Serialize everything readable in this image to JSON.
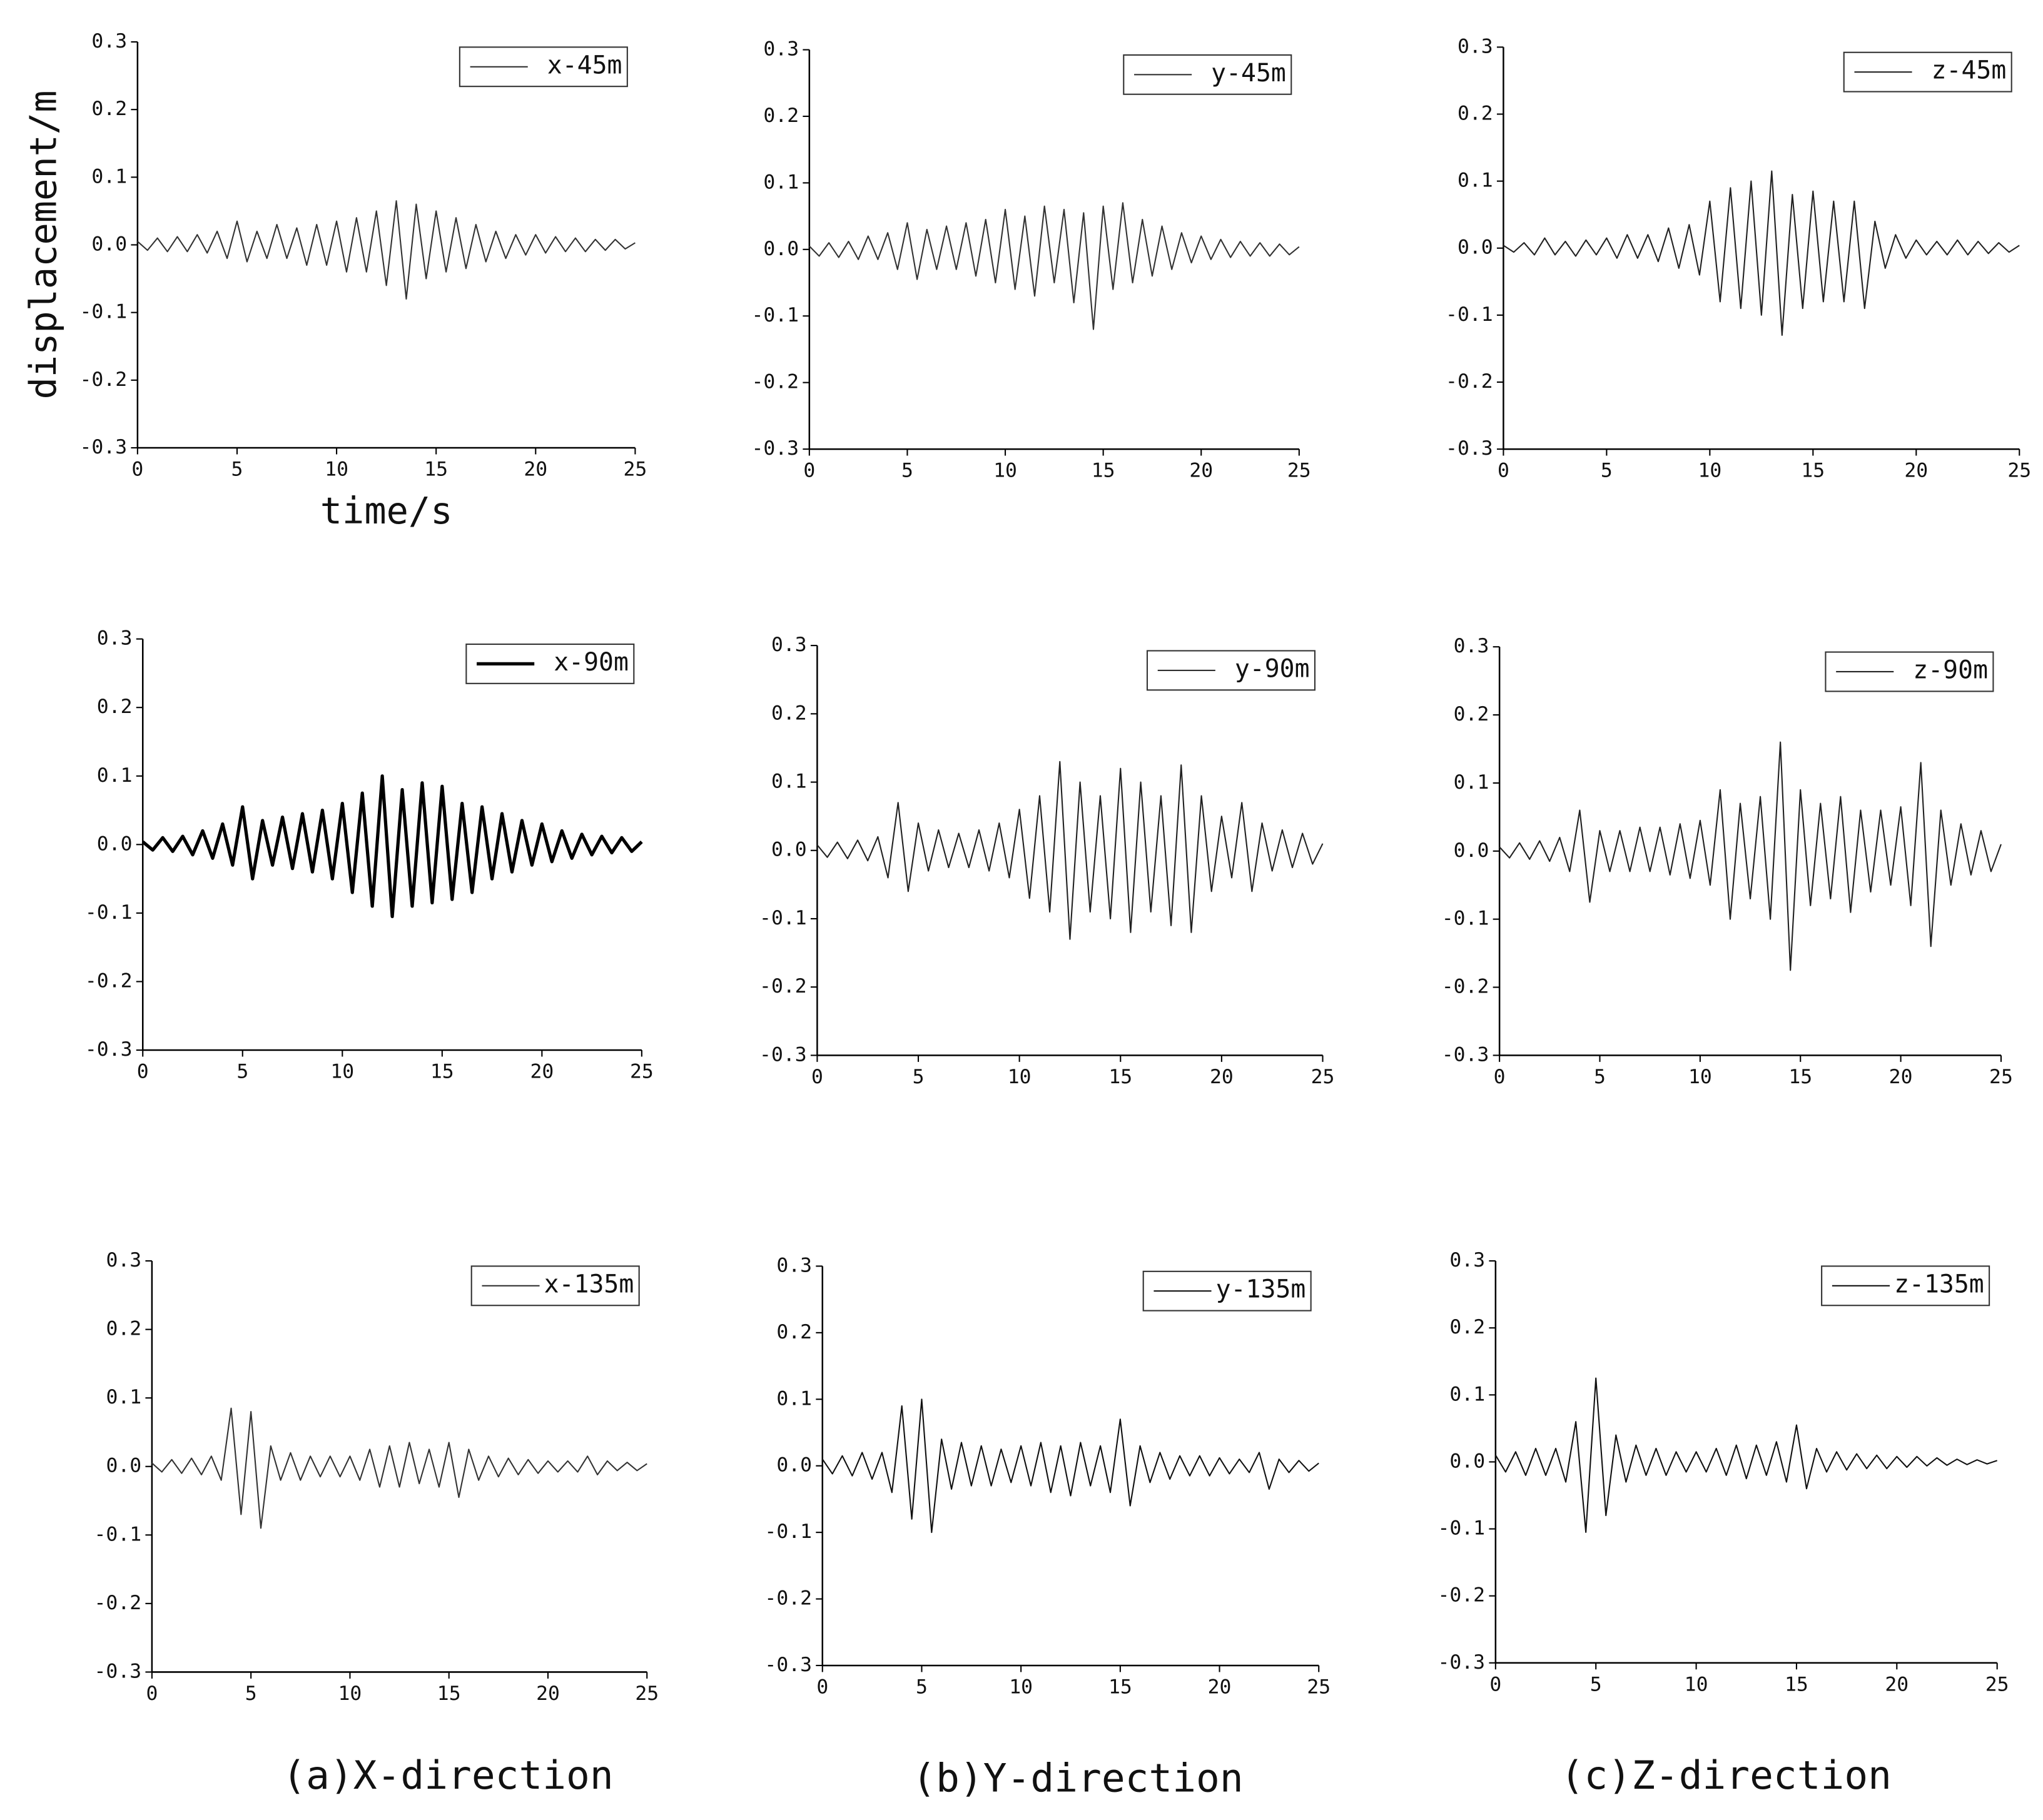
{
  "chart_data": [
    {
      "type": "line",
      "y_label": "displacement/m",
      "x_label": "time/s",
      "x": [
        0,
        0.5,
        1,
        1.5,
        2,
        2.5,
        3,
        3.5,
        4,
        4.5,
        5,
        5.5,
        6,
        6.5,
        7,
        7.5,
        8,
        8.5,
        9,
        9.5,
        10,
        10.5,
        11,
        11.5,
        12,
        12.5,
        13,
        13.5,
        14,
        14.5,
        15,
        15.5,
        16,
        16.5,
        17,
        17.5,
        18,
        18.5,
        19,
        19.5,
        20,
        20.5,
        21,
        21.5,
        22,
        22.5,
        23,
        23.5,
        24,
        24.5,
        25
      ],
      "series": [
        {
          "name": "x-45m",
          "color": "#333333",
          "linewidth": 1,
          "values": [
            0.005,
            -0.008,
            0.01,
            -0.01,
            0.012,
            -0.01,
            0.015,
            -0.012,
            0.02,
            -0.02,
            0.035,
            -0.025,
            0.02,
            -0.02,
            0.03,
            -0.02,
            0.025,
            -0.03,
            0.03,
            -0.03,
            0.035,
            -0.04,
            0.04,
            -0.04,
            0.05,
            -0.06,
            0.065,
            -0.08,
            0.06,
            -0.05,
            0.05,
            -0.04,
            0.04,
            -0.035,
            0.03,
            -0.025,
            0.02,
            -0.02,
            0.015,
            -0.015,
            0.015,
            -0.012,
            0.012,
            -0.01,
            0.01,
            -0.01,
            0.008,
            -0.008,
            0.008,
            -0.006,
            0.003
          ]
        }
      ],
      "xlim": [
        0,
        25
      ],
      "xticks": [
        0,
        5,
        10,
        15,
        20,
        25
      ],
      "ylim": [
        -0.3,
        0.3
      ],
      "yticks": [
        -0.3,
        -0.2,
        -0.1,
        {
          "value": 0,
          "label": "0.0"
        },
        0.1,
        0.2,
        0.3
      ]
    },
    {
      "type": "line",
      "x": [
        0,
        0.5,
        1,
        1.5,
        2,
        2.5,
        3,
        3.5,
        4,
        4.5,
        5,
        5.5,
        6,
        6.5,
        7,
        7.5,
        8,
        8.5,
        9,
        9.5,
        10,
        10.5,
        11,
        11.5,
        12,
        12.5,
        13,
        13.5,
        14,
        14.5,
        15,
        15.5,
        16,
        16.5,
        17,
        17.5,
        18,
        18.5,
        19,
        19.5,
        20,
        20.5,
        21,
        21.5,
        22,
        22.5,
        23,
        23.5,
        24,
        24.5,
        25
      ],
      "series": [
        {
          "name": "y-45m",
          "color": "#333333",
          "linewidth": 1,
          "values": [
            0.005,
            -0.01,
            0.01,
            -0.012,
            0.012,
            -0.015,
            0.02,
            -0.015,
            0.025,
            -0.03,
            0.04,
            -0.045,
            0.03,
            -0.03,
            0.035,
            -0.03,
            0.04,
            -0.04,
            0.045,
            -0.05,
            0.06,
            -0.06,
            0.05,
            -0.07,
            0.065,
            -0.05,
            0.06,
            -0.08,
            0.055,
            -0.12,
            0.065,
            -0.06,
            0.07,
            -0.05,
            0.045,
            -0.04,
            0.035,
            -0.03,
            0.025,
            -0.02,
            0.02,
            -0.015,
            0.015,
            -0.012,
            0.012,
            -0.01,
            0.01,
            -0.01,
            0.008,
            -0.008,
            0.004
          ]
        }
      ],
      "xlim": [
        0,
        25
      ],
      "xticks": [
        0,
        5,
        10,
        15,
        20,
        25
      ],
      "ylim": [
        -0.3,
        0.3
      ],
      "yticks": [
        -0.3,
        -0.2,
        -0.1,
        {
          "value": 0,
          "label": "0.0"
        },
        0.1,
        0.2,
        0.3
      ]
    },
    {
      "type": "line",
      "x": [
        0,
        0.5,
        1,
        1.5,
        2,
        2.5,
        3,
        3.5,
        4,
        4.5,
        5,
        5.5,
        6,
        6.5,
        7,
        7.5,
        8,
        8.5,
        9,
        9.5,
        10,
        10.5,
        11,
        11.5,
        12,
        12.5,
        13,
        13.5,
        14,
        14.5,
        15,
        15.5,
        16,
        16.5,
        17,
        17.5,
        18,
        18.5,
        19,
        19.5,
        20,
        20.5,
        21,
        21.5,
        22,
        22.5,
        23,
        23.5,
        24,
        24.5,
        25
      ],
      "series": [
        {
          "name": "z-45m",
          "color": "#222222",
          "linewidth": 1,
          "values": [
            0.004,
            -0.006,
            0.008,
            -0.01,
            0.015,
            -0.01,
            0.01,
            -0.012,
            0.012,
            -0.01,
            0.015,
            -0.015,
            0.02,
            -0.015,
            0.02,
            -0.02,
            0.03,
            -0.03,
            0.035,
            -0.04,
            0.07,
            -0.08,
            0.09,
            -0.09,
            0.1,
            -0.1,
            0.115,
            -0.13,
            0.08,
            -0.09,
            0.085,
            -0.08,
            0.07,
            -0.08,
            0.07,
            -0.09,
            0.04,
            -0.03,
            0.02,
            -0.015,
            0.012,
            -0.01,
            0.01,
            -0.01,
            0.012,
            -0.01,
            0.01,
            -0.008,
            0.008,
            -0.006,
            0.004
          ]
        }
      ],
      "xlim": [
        0,
        25
      ],
      "xticks": [
        0,
        5,
        10,
        15,
        20,
        25
      ],
      "ylim": [
        -0.3,
        0.3
      ],
      "yticks": [
        -0.3,
        -0.2,
        -0.1,
        {
          "value": 0,
          "label": "0.0"
        },
        0.1,
        0.2,
        0.3
      ]
    },
    {
      "type": "line",
      "x": [
        0,
        0.5,
        1,
        1.5,
        2,
        2.5,
        3,
        3.5,
        4,
        4.5,
        5,
        5.5,
        6,
        6.5,
        7,
        7.5,
        8,
        8.5,
        9,
        9.5,
        10,
        10.5,
        11,
        11.5,
        12,
        12.5,
        13,
        13.5,
        14,
        14.5,
        15,
        15.5,
        16,
        16.5,
        17,
        17.5,
        18,
        18.5,
        19,
        19.5,
        20,
        20.5,
        21,
        21.5,
        22,
        22.5,
        23,
        23.5,
        24,
        24.5,
        25
      ],
      "series": [
        {
          "name": "x-90m",
          "color": "#000000",
          "linewidth": 2.5,
          "values": [
            0.004,
            -0.008,
            0.01,
            -0.01,
            0.012,
            -0.015,
            0.02,
            -0.02,
            0.03,
            -0.03,
            0.055,
            -0.05,
            0.035,
            -0.03,
            0.04,
            -0.035,
            0.045,
            -0.04,
            0.05,
            -0.05,
            0.06,
            -0.07,
            0.075,
            -0.09,
            0.1,
            -0.105,
            0.08,
            -0.09,
            0.09,
            -0.085,
            0.085,
            -0.08,
            0.06,
            -0.07,
            0.055,
            -0.05,
            0.045,
            -0.04,
            0.035,
            -0.03,
            0.03,
            -0.025,
            0.02,
            -0.02,
            0.015,
            -0.015,
            0.012,
            -0.012,
            0.01,
            -0.01,
            0.004
          ]
        }
      ],
      "xlim": [
        0,
        25
      ],
      "xticks": [
        0,
        5,
        10,
        15,
        20,
        25
      ],
      "ylim": [
        -0.3,
        0.3
      ],
      "yticks": [
        -0.3,
        -0.2,
        -0.1,
        {
          "value": 0,
          "label": "0.0"
        },
        0.1,
        0.2,
        0.3
      ]
    },
    {
      "type": "line",
      "x": [
        0,
        0.5,
        1,
        1.5,
        2,
        2.5,
        3,
        3.5,
        4,
        4.5,
        5,
        5.5,
        6,
        6.5,
        7,
        7.5,
        8,
        8.5,
        9,
        9.5,
        10,
        10.5,
        11,
        11.5,
        12,
        12.5,
        13,
        13.5,
        14,
        14.5,
        15,
        15.5,
        16,
        16.5,
        17,
        17.5,
        18,
        18.5,
        19,
        19.5,
        20,
        20.5,
        21,
        21.5,
        22,
        22.5,
        23,
        23.5,
        24,
        24.5,
        25
      ],
      "series": [
        {
          "name": "y-90m",
          "color": "#222222",
          "linewidth": 1,
          "values": [
            0.008,
            -0.01,
            0.012,
            -0.012,
            0.015,
            -0.015,
            0.02,
            -0.04,
            0.07,
            -0.06,
            0.04,
            -0.03,
            0.03,
            -0.025,
            0.025,
            -0.025,
            0.03,
            -0.03,
            0.04,
            -0.04,
            0.06,
            -0.07,
            0.08,
            -0.09,
            0.13,
            -0.13,
            0.1,
            -0.09,
            0.08,
            -0.1,
            0.12,
            -0.12,
            0.1,
            -0.09,
            0.08,
            -0.11,
            0.125,
            -0.12,
            0.08,
            -0.06,
            0.05,
            -0.04,
            0.07,
            -0.06,
            0.04,
            -0.03,
            0.03,
            -0.025,
            0.025,
            -0.02,
            0.01
          ]
        }
      ],
      "xlim": [
        0,
        25
      ],
      "xticks": [
        0,
        5,
        10,
        15,
        20,
        25
      ],
      "ylim": [
        -0.3,
        0.3
      ],
      "yticks": [
        -0.3,
        -0.2,
        -0.1,
        {
          "value": 0,
          "label": "0.0"
        },
        0.1,
        0.2,
        0.3
      ]
    },
    {
      "type": "line",
      "x": [
        0,
        0.5,
        1,
        1.5,
        2,
        2.5,
        3,
        3.5,
        4,
        4.5,
        5,
        5.5,
        6,
        6.5,
        7,
        7.5,
        8,
        8.5,
        9,
        9.5,
        10,
        10.5,
        11,
        11.5,
        12,
        12.5,
        13,
        13.5,
        14,
        14.5,
        15,
        15.5,
        16,
        16.5,
        17,
        17.5,
        18,
        18.5,
        19,
        19.5,
        20,
        20.5,
        21,
        21.5,
        22,
        22.5,
        23,
        23.5,
        24,
        24.5,
        25
      ],
      "series": [
        {
          "name": "z-90m",
          "color": "#222222",
          "linewidth": 1,
          "values": [
            0.006,
            -0.01,
            0.012,
            -0.012,
            0.015,
            -0.015,
            0.02,
            -0.03,
            0.06,
            -0.075,
            0.03,
            -0.03,
            0.03,
            -0.03,
            0.035,
            -0.03,
            0.035,
            -0.035,
            0.04,
            -0.04,
            0.045,
            -0.05,
            0.09,
            -0.1,
            0.07,
            -0.07,
            0.08,
            -0.1,
            0.16,
            -0.175,
            0.09,
            -0.08,
            0.07,
            -0.07,
            0.08,
            -0.09,
            0.06,
            -0.06,
            0.06,
            -0.05,
            0.065,
            -0.08,
            0.13,
            -0.14,
            0.06,
            -0.05,
            0.04,
            -0.035,
            0.03,
            -0.03,
            0.01
          ]
        }
      ],
      "xlim": [
        0,
        25
      ],
      "xticks": [
        0,
        5,
        10,
        15,
        20,
        25
      ],
      "ylim": [
        -0.3,
        0.3
      ],
      "yticks": [
        -0.3,
        -0.2,
        -0.1,
        {
          "value": 0,
          "label": "0.0"
        },
        0.1,
        0.2,
        0.3
      ]
    },
    {
      "type": "line",
      "x": [
        0,
        0.5,
        1,
        1.5,
        2,
        2.5,
        3,
        3.5,
        4,
        4.5,
        5,
        5.5,
        6,
        6.5,
        7,
        7.5,
        8,
        8.5,
        9,
        9.5,
        10,
        10.5,
        11,
        11.5,
        12,
        12.5,
        13,
        13.5,
        14,
        14.5,
        15,
        15.5,
        16,
        16.5,
        17,
        17.5,
        18,
        18.5,
        19,
        19.5,
        20,
        20.5,
        21,
        21.5,
        22,
        22.5,
        23,
        23.5,
        24,
        24.5,
        25
      ],
      "series": [
        {
          "name": "x-135m",
          "color": "#333333",
          "linewidth": 1,
          "values": [
            0.005,
            -0.008,
            0.01,
            -0.01,
            0.012,
            -0.012,
            0.015,
            -0.02,
            0.085,
            -0.07,
            0.08,
            -0.09,
            0.03,
            -0.02,
            0.02,
            -0.02,
            0.015,
            -0.015,
            0.015,
            -0.015,
            0.015,
            -0.02,
            0.025,
            -0.03,
            0.03,
            -0.03,
            0.035,
            -0.025,
            0.025,
            -0.03,
            0.035,
            -0.045,
            0.025,
            -0.02,
            0.015,
            -0.015,
            0.012,
            -0.012,
            0.01,
            -0.01,
            0.008,
            -0.008,
            0.008,
            -0.008,
            0.015,
            -0.012,
            0.008,
            -0.006,
            0.006,
            -0.006,
            0.004
          ]
        }
      ],
      "xlim": [
        0,
        25
      ],
      "xticks": [
        0,
        5,
        10,
        15,
        20,
        25
      ],
      "ylim": [
        -0.3,
        0.3
      ],
      "yticks": [
        -0.3,
        -0.2,
        -0.1,
        {
          "value": 0,
          "label": "0.0"
        },
        0.1,
        0.2,
        0.3
      ]
    },
    {
      "type": "line",
      "x": [
        0,
        0.5,
        1,
        1.5,
        2,
        2.5,
        3,
        3.5,
        4,
        4.5,
        5,
        5.5,
        6,
        6.5,
        7,
        7.5,
        8,
        8.5,
        9,
        9.5,
        10,
        10.5,
        11,
        11.5,
        12,
        12.5,
        13,
        13.5,
        14,
        14.5,
        15,
        15.5,
        16,
        16.5,
        17,
        17.5,
        18,
        18.5,
        19,
        19.5,
        20,
        20.5,
        21,
        21.5,
        22,
        22.5,
        23,
        23.5,
        24,
        24.5,
        25
      ],
      "series": [
        {
          "name": "y-135m",
          "color": "#111111",
          "linewidth": 1,
          "values": [
            0.01,
            -0.012,
            0.015,
            -0.015,
            0.02,
            -0.02,
            0.02,
            -0.04,
            0.09,
            -0.08,
            0.1,
            -0.1,
            0.04,
            -0.035,
            0.035,
            -0.03,
            0.03,
            -0.03,
            0.025,
            -0.025,
            0.03,
            -0.03,
            0.035,
            -0.04,
            0.03,
            -0.045,
            0.035,
            -0.03,
            0.03,
            -0.04,
            0.07,
            -0.06,
            0.03,
            -0.025,
            0.02,
            -0.02,
            0.015,
            -0.015,
            0.015,
            -0.015,
            0.012,
            -0.012,
            0.01,
            -0.01,
            0.02,
            -0.035,
            0.01,
            -0.01,
            0.008,
            -0.008,
            0.004
          ]
        }
      ],
      "xlim": [
        0,
        25
      ],
      "xticks": [
        0,
        5,
        10,
        15,
        20,
        25
      ],
      "ylim": [
        -0.3,
        0.3
      ],
      "yticks": [
        -0.3,
        -0.2,
        -0.1,
        {
          "value": 0,
          "label": "0.0"
        },
        0.1,
        0.2,
        0.3
      ]
    },
    {
      "type": "line",
      "x": [
        0,
        0.5,
        1,
        1.5,
        2,
        2.5,
        3,
        3.5,
        4,
        4.5,
        5,
        5.5,
        6,
        6.5,
        7,
        7.5,
        8,
        8.5,
        9,
        9.5,
        10,
        10.5,
        11,
        11.5,
        12,
        12.5,
        13,
        13.5,
        14,
        14.5,
        15,
        15.5,
        16,
        16.5,
        17,
        17.5,
        18,
        18.5,
        19,
        19.5,
        20,
        20.5,
        21,
        21.5,
        22,
        22.5,
        23,
        23.5,
        24,
        24.5,
        25
      ],
      "series": [
        {
          "name": "z-135m",
          "color": "#111111",
          "linewidth": 1,
          "values": [
            0.01,
            -0.015,
            0.015,
            -0.02,
            0.02,
            -0.02,
            0.02,
            -0.03,
            0.06,
            -0.105,
            0.125,
            -0.08,
            0.04,
            -0.03,
            0.025,
            -0.02,
            0.02,
            -0.02,
            0.015,
            -0.015,
            0.015,
            -0.015,
            0.02,
            -0.02,
            0.025,
            -0.025,
            0.025,
            -0.02,
            0.03,
            -0.03,
            0.055,
            -0.04,
            0.02,
            -0.015,
            0.015,
            -0.012,
            0.012,
            -0.01,
            0.01,
            -0.01,
            0.008,
            -0.008,
            0.008,
            -0.006,
            0.006,
            -0.005,
            0.004,
            -0.004,
            0.003,
            -0.003,
            0.002
          ]
        }
      ],
      "xlim": [
        0,
        25
      ],
      "xticks": [
        0,
        5,
        10,
        15,
        20,
        25
      ],
      "ylim": [
        -0.3,
        0.3
      ],
      "yticks": [
        -0.3,
        -0.2,
        -0.1,
        {
          "value": 0,
          "label": "0.0"
        },
        0.1,
        0.2,
        0.3
      ]
    }
  ],
  "captions": [
    "(a)X-direction",
    "(b)Y-direction",
    "(c)Z-direction"
  ]
}
